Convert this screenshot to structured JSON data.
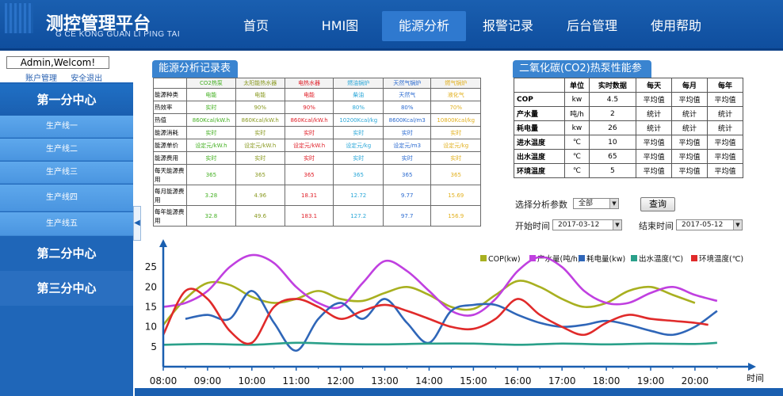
{
  "header": {
    "title": "测控管理平台",
    "subtitle": "G CE KONG GUAN LI PING TAI",
    "nav": [
      "首页",
      "HMI图",
      "能源分析",
      "报警记录",
      "后台管理",
      "使用帮助"
    ]
  },
  "sidebar": {
    "welcome": "Admin,Welcom!",
    "account": "账户管理",
    "logout": "安全退出",
    "center1": "第一分中心",
    "lines": [
      "生产线一",
      "生产线二",
      "生产线三",
      "生产线四",
      "生产线五"
    ],
    "center2": "第二分中心",
    "center3": "第三分中心"
  },
  "energy_table": {
    "title": "能源分析记录表",
    "columns": [
      "CO2热泵",
      "太阳能热水器",
      "电热水器",
      "燃油锅炉",
      "天然气锅炉",
      "燃气锅炉"
    ],
    "col_colors": [
      "#44b022",
      "#8a9a22",
      "#e0212a",
      "#2aa7d8",
      "#2a6ad0",
      "#e2b01e"
    ],
    "rows": [
      {
        "label": "能源种类",
        "values": [
          "电能",
          "电能",
          "电能",
          "柴油",
          "天然气",
          "液化气"
        ]
      },
      {
        "label": "热效率",
        "values": [
          "实时",
          "90%",
          "90%",
          "80%",
          "80%",
          "70%"
        ]
      },
      {
        "label": "热值",
        "values": [
          "860Kcal/kW.h",
          "860Kcal/kW.h",
          "860Kcal/kW.h",
          "10200Kcal/kg",
          "8600Kcal/m3",
          "10800Kcal/kg"
        ]
      },
      {
        "label": "能源消耗",
        "values": [
          "实时",
          "实时",
          "实时",
          "实时",
          "实时",
          "实时"
        ]
      },
      {
        "label": "能源单价",
        "values": [
          "设定元/kW.h",
          "设定元/kW.h",
          "设定元/kW.h",
          "设定元/kg",
          "设定元/m3",
          "设定元/kg"
        ]
      },
      {
        "label": "能源费用",
        "values": [
          "实时",
          "实时",
          "实时",
          "实时",
          "实时",
          "实时"
        ]
      },
      {
        "label": "每天能源费用",
        "values": [
          "365",
          "365",
          "365",
          "365",
          "365",
          "365"
        ]
      },
      {
        "label": "每月能源费用",
        "values": [
          "3.28",
          "4.96",
          "18.31",
          "12.72",
          "9.77",
          "15.69"
        ]
      },
      {
        "label": "每年能源费用",
        "values": [
          "32.8",
          "49.6",
          "183.1",
          "127.2",
          "97.7",
          "156.9"
        ]
      }
    ]
  },
  "co2_table": {
    "title": "二氧化碳(CO2)热泵性能参数",
    "headers": [
      "",
      "单位",
      "实时数据",
      "每天",
      "每月",
      "每年"
    ],
    "rows": [
      [
        "COP",
        "kw",
        "4.5",
        "平均值",
        "平均值",
        "平均值"
      ],
      [
        "产水量",
        "吨/h",
        "2",
        "统计",
        "统计",
        "统计"
      ],
      [
        "耗电量",
        "kw",
        "26",
        "统计",
        "统计",
        "统计"
      ],
      [
        "进水温度",
        "℃",
        "10",
        "平均值",
        "平均值",
        "平均值"
      ],
      [
        "出水温度",
        "℃",
        "65",
        "平均值",
        "平均值",
        "平均值"
      ],
      [
        "环境温度",
        "℃",
        "5",
        "平均值",
        "平均值",
        "平均值"
      ]
    ]
  },
  "controls": {
    "param_label": "选择分析参数",
    "param_value": "全部",
    "query": "查询",
    "start_label": "开始时间",
    "start_value": "2017-03-12",
    "end_label": "结束时间",
    "end_value": "2017-05-12"
  },
  "chart_data": {
    "type": "line",
    "xlabel": "时间",
    "x": [
      "08:00",
      "09:00",
      "10:00",
      "11:00",
      "12:00",
      "13:00",
      "14:00",
      "15:00",
      "16:00",
      "17:00",
      "18:00",
      "19:00",
      "20:00"
    ],
    "yticks": [
      5,
      10,
      15,
      20,
      25
    ],
    "ylim": [
      0,
      30
    ],
    "legend_position": "top-right",
    "series": [
      {
        "name": "COP(kw)",
        "color": "#a8b020",
        "points": [
          [
            8.0,
            10.5
          ],
          [
            8.5,
            17
          ],
          [
            9.0,
            21
          ],
          [
            9.5,
            20.5
          ],
          [
            10.0,
            17.5
          ],
          [
            10.5,
            16
          ],
          [
            11.0,
            17
          ],
          [
            11.5,
            19
          ],
          [
            12.0,
            17
          ],
          [
            12.5,
            16.5
          ],
          [
            13.0,
            18.5
          ],
          [
            13.5,
            20
          ],
          [
            14.0,
            18
          ],
          [
            14.5,
            15
          ],
          [
            15.0,
            14.5
          ],
          [
            15.5,
            18
          ],
          [
            16.0,
            21.5
          ],
          [
            16.5,
            20
          ],
          [
            17.0,
            17
          ],
          [
            17.5,
            15
          ],
          [
            18.0,
            16
          ],
          [
            18.5,
            19
          ],
          [
            19.0,
            20
          ],
          [
            19.5,
            18
          ],
          [
            20.0,
            16
          ]
        ]
      },
      {
        "name": "产水量(吨/h)",
        "color": "#c040e0",
        "points": [
          [
            8.0,
            15
          ],
          [
            8.5,
            16
          ],
          [
            9.0,
            19
          ],
          [
            9.5,
            25
          ],
          [
            10.0,
            28
          ],
          [
            10.5,
            26
          ],
          [
            11.0,
            20
          ],
          [
            11.5,
            16
          ],
          [
            12.0,
            15
          ],
          [
            12.5,
            21
          ],
          [
            13.0,
            26.5
          ],
          [
            13.5,
            24
          ],
          [
            14.0,
            19
          ],
          [
            14.5,
            14
          ],
          [
            15.0,
            13
          ],
          [
            15.5,
            17
          ],
          [
            16.0,
            24
          ],
          [
            16.5,
            27.5
          ],
          [
            17.0,
            25
          ],
          [
            17.5,
            19
          ],
          [
            18.0,
            16
          ],
          [
            18.5,
            16
          ],
          [
            19.0,
            18.5
          ],
          [
            19.5,
            20
          ],
          [
            20.0,
            18
          ],
          [
            20.5,
            16.5
          ]
        ]
      },
      {
        "name": "耗电量(kw)",
        "color": "#2f66b8",
        "points": [
          [
            8.5,
            12
          ],
          [
            9.0,
            13
          ],
          [
            9.5,
            12
          ],
          [
            10.0,
            19
          ],
          [
            10.5,
            11
          ],
          [
            11.0,
            4
          ],
          [
            11.5,
            12
          ],
          [
            12.0,
            16
          ],
          [
            12.5,
            12
          ],
          [
            13.0,
            17
          ],
          [
            13.5,
            11
          ],
          [
            14.0,
            6
          ],
          [
            14.5,
            14
          ],
          [
            15.0,
            15.5
          ],
          [
            15.5,
            15.5
          ],
          [
            16.0,
            13
          ],
          [
            16.5,
            11
          ],
          [
            17.0,
            10
          ],
          [
            17.5,
            10.5
          ],
          [
            18.0,
            11.5
          ],
          [
            18.5,
            10.5
          ],
          [
            19.0,
            9
          ],
          [
            19.5,
            8
          ],
          [
            20.0,
            10
          ],
          [
            20.5,
            14
          ]
        ]
      },
      {
        "name": "出水温度(℃)",
        "color": "#2aa08a",
        "points": [
          [
            8.0,
            5.5
          ],
          [
            9.0,
            5.7
          ],
          [
            10.0,
            5.5
          ],
          [
            11.0,
            6
          ],
          [
            12.0,
            5.7
          ],
          [
            13.0,
            5.6
          ],
          [
            14.0,
            5.8
          ],
          [
            15.0,
            5.8
          ],
          [
            16.0,
            5.5
          ],
          [
            17.0,
            5.8
          ],
          [
            18.0,
            5.6
          ],
          [
            19.0,
            5.8
          ],
          [
            20.0,
            5.7
          ],
          [
            20.5,
            6
          ]
        ]
      },
      {
        "name": "环境温度(℃)",
        "color": "#e02a2a",
        "points": [
          [
            8.0,
            8
          ],
          [
            8.5,
            19
          ],
          [
            9.0,
            17
          ],
          [
            9.5,
            9
          ],
          [
            10.0,
            6
          ],
          [
            10.5,
            15
          ],
          [
            11.0,
            17
          ],
          [
            11.5,
            15
          ],
          [
            12.0,
            12
          ],
          [
            12.5,
            14
          ],
          [
            13.0,
            15.5
          ],
          [
            13.5,
            14
          ],
          [
            14.0,
            12
          ],
          [
            14.5,
            10
          ],
          [
            15.0,
            9.5
          ],
          [
            15.5,
            12
          ],
          [
            16.0,
            17
          ],
          [
            16.5,
            13
          ],
          [
            17.0,
            10
          ],
          [
            17.5,
            8
          ],
          [
            18.0,
            11
          ],
          [
            18.5,
            13
          ],
          [
            19.0,
            12
          ],
          [
            19.5,
            11.5
          ],
          [
            20.0,
            11
          ],
          [
            20.3,
            10.5
          ]
        ]
      }
    ]
  }
}
